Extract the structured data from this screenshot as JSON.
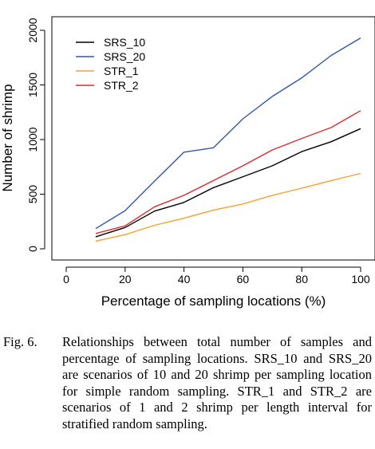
{
  "chart_data": {
    "type": "line",
    "title": "",
    "xlabel": "Percentage of sampling locations (%)",
    "ylabel": "Number of shrimp",
    "xlim": [
      0,
      100
    ],
    "ylim": [
      0,
      2000
    ],
    "xticks": [
      0,
      20,
      40,
      60,
      80,
      100
    ],
    "yticks": [
      0,
      500,
      1000,
      1500,
      2000
    ],
    "grid": false,
    "legend_position": "top-left",
    "x": [
      10,
      20,
      30,
      40,
      50,
      60,
      70,
      80,
      90,
      100
    ],
    "series": [
      {
        "name": "SRS_10",
        "color": "#000000",
        "values": [
          110,
          195,
          345,
          425,
          560,
          660,
          760,
          890,
          980,
          1100
        ]
      },
      {
        "name": "SRS_20",
        "color": "#3355aa",
        "values": [
          185,
          350,
          620,
          885,
          925,
          1190,
          1395,
          1565,
          1770,
          1930
        ]
      },
      {
        "name": "STR_1",
        "color": "#f5a030",
        "values": [
          70,
          130,
          215,
          280,
          355,
          410,
          490,
          555,
          625,
          690
        ]
      },
      {
        "name": "STR_2",
        "color": "#dd2a2a",
        "values": [
          140,
          210,
          385,
          490,
          625,
          760,
          905,
          1010,
          1110,
          1265
        ]
      }
    ]
  },
  "caption": {
    "label": "Fig. 6.",
    "text": "Relationships between total number of samples and percentage of sampling locations. SRS_10 and SRS_20 are scenarios of 10 and 20 shrimp per sampling location for simple random sampling. STR_1 and STR_2 are scenarios of 1 and 2 shrimp per length interval for stratified random sampling."
  }
}
